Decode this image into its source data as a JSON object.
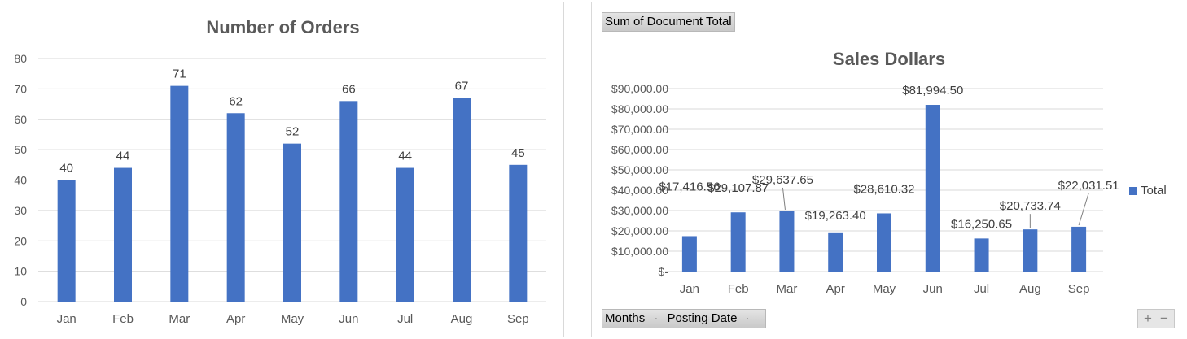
{
  "colors": {
    "bar": "#4472c4",
    "grid": "#d9d9d9",
    "text": "#595959"
  },
  "pivot": {
    "value_field": "Sum of Document Total",
    "row_fields": [
      "Months",
      "Posting Date"
    ],
    "expand_glyph": "+",
    "collapse_glyph": "−"
  },
  "chart_data": [
    {
      "type": "bar",
      "title": "Number of Orders",
      "categories": [
        "Jan",
        "Feb",
        "Mar",
        "Apr",
        "May",
        "Jun",
        "Jul",
        "Aug",
        "Sep"
      ],
      "values": [
        40,
        44,
        71,
        62,
        52,
        66,
        44,
        67,
        45
      ],
      "data_labels": [
        "40",
        "44",
        "71",
        "62",
        "52",
        "66",
        "44",
        "67",
        "45"
      ],
      "ylim": [
        0,
        80
      ],
      "yticks": [
        "0",
        "10",
        "20",
        "30",
        "40",
        "50",
        "60",
        "70",
        "80"
      ],
      "grid": true
    },
    {
      "type": "bar",
      "title": "Sales Dollars",
      "categories": [
        "Jan",
        "Feb",
        "Mar",
        "Apr",
        "May",
        "Jun",
        "Jul",
        "Aug",
        "Sep"
      ],
      "series": [
        {
          "name": "Total",
          "values": [
            17416.56,
            29107.87,
            29637.65,
            19263.4,
            28610.32,
            81994.5,
            16250.65,
            20733.74,
            22031.51
          ]
        }
      ],
      "data_labels": [
        "$17,416.56",
        "$29,107.87",
        "$29,637.65",
        "$19,263.40",
        "$28,610.32",
        "$81,994.50",
        "$16,250.65",
        "$20,733.74",
        "$22,031.51"
      ],
      "ylim": [
        0,
        90000
      ],
      "yticks": [
        "$-",
        "$10,000.00",
        "$20,000.00",
        "$30,000.00",
        "$40,000.00",
        "$50,000.00",
        "$60,000.00",
        "$70,000.00",
        "$80,000.00",
        "$90,000.00"
      ],
      "grid": true,
      "legend": "right"
    }
  ]
}
